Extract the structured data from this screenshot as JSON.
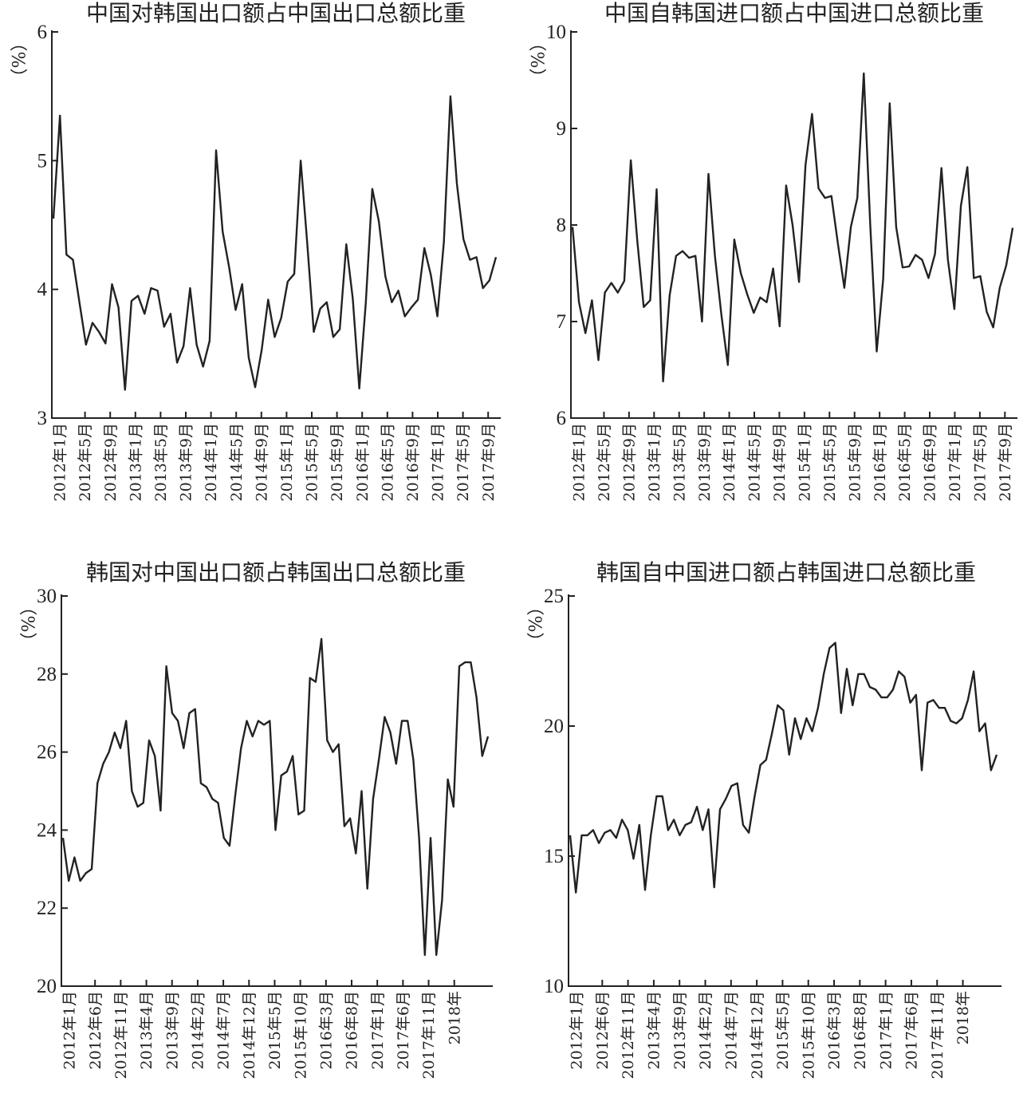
{
  "chart_data": [
    {
      "type": "line",
      "title": "中国对韩国出口额占中国出口总额比重",
      "ylabel": "（%）",
      "ylim": [
        3,
        6
      ],
      "yticks": [
        "3",
        "4",
        "5",
        "6"
      ],
      "x_start": "2012-01",
      "x_end": "2017-12",
      "xtick_labels": [
        "2012年1月",
        "2012年5月",
        "2012年9月",
        "2013年1月",
        "2013年5月",
        "2013年9月",
        "2014年1月",
        "2014年5月",
        "2014年9月",
        "2015年1月",
        "2015年5月",
        "2015年9月",
        "2016年1月",
        "2016年5月",
        "2016年9月",
        "2017年1月",
        "2017年5月",
        "2017年9月"
      ],
      "series": [
        {
          "values": [
            4.55,
            5.35,
            4.27,
            4.23,
            3.9,
            3.57,
            3.74,
            3.67,
            3.58,
            4.04,
            3.86,
            3.22,
            3.91,
            3.95,
            3.81,
            4.01,
            3.99,
            3.71,
            3.81,
            3.43,
            3.56,
            4.01,
            3.57,
            3.4,
            3.6,
            5.08,
            4.45,
            4.17,
            3.84,
            4.04,
            3.47,
            3.24,
            3.53,
            3.92,
            3.63,
            3.78,
            4.06,
            4.12,
            5.0,
            4.36,
            3.67,
            3.85,
            3.9,
            3.63,
            3.69,
            4.35,
            3.93,
            3.23,
            3.9,
            4.78,
            4.53,
            4.1,
            3.9,
            3.99,
            3.79,
            3.86,
            3.92,
            4.32,
            4.11,
            3.79,
            4.37,
            5.5,
            4.82,
            4.39,
            4.23,
            4.25,
            4.01,
            4.07,
            4.25
          ]
        }
      ]
    },
    {
      "type": "line",
      "title": "中国自韩国进口额占中国进口总额比重",
      "ylabel": "（%）",
      "ylim": [
        6,
        10
      ],
      "yticks": [
        "6",
        "7",
        "8",
        "9",
        "10"
      ],
      "x_start": "2012-01",
      "x_end": "2017-12",
      "xtick_labels": [
        "2012年1月",
        "2012年5月",
        "2012年9月",
        "2013年1月",
        "2013年5月",
        "2013年9月",
        "2014年1月",
        "2014年5月",
        "2014年9月",
        "2015年1月",
        "2015年5月",
        "2015年9月",
        "2016年1月",
        "2016年5月",
        "2016年9月",
        "2017年1月",
        "2017年5月",
        "2017年9月"
      ],
      "series": [
        {
          "values": [
            7.98,
            7.2,
            6.88,
            7.22,
            6.6,
            7.3,
            7.4,
            7.3,
            7.42,
            8.67,
            7.84,
            7.15,
            7.22,
            8.37,
            6.38,
            7.27,
            7.68,
            7.73,
            7.66,
            7.68,
            7.0,
            8.53,
            7.68,
            7.07,
            6.55,
            7.85,
            7.5,
            7.28,
            7.09,
            7.25,
            7.2,
            7.55,
            6.95,
            8.41,
            8.0,
            7.41,
            8.62,
            9.15,
            8.38,
            8.28,
            8.3,
            7.81,
            7.35,
            7.98,
            8.28,
            9.57,
            8.0,
            6.69,
            7.44,
            9.26,
            7.98,
            7.56,
            7.57,
            7.69,
            7.64,
            7.45,
            7.7,
            8.59,
            7.64,
            7.13,
            8.2,
            8.6,
            7.45,
            7.47,
            7.1,
            6.94,
            7.35,
            7.58,
            7.97
          ]
        }
      ]
    },
    {
      "type": "line",
      "title": "韩国对中国出口额占韩国出口总额比重",
      "ylabel": "（%）",
      "ylim": [
        20,
        30
      ],
      "yticks": [
        "20",
        "22",
        "24",
        "26",
        "28",
        "30"
      ],
      "x_start": "2012-01",
      "x_end": "2018-01",
      "xtick_labels": [
        "2012年1月",
        "2012年6月",
        "2012年11月",
        "2013年4月",
        "2013年9月",
        "2014年2月",
        "2014年7月",
        "2014年12月",
        "2015年5月",
        "2015年10月",
        "2016年3月",
        "2016年8月",
        "2017年1月",
        "2017年6月",
        "2017年11月",
        "2018年"
      ],
      "series": [
        {
          "values": [
            23.8,
            22.7,
            23.3,
            22.7,
            22.9,
            23.0,
            25.2,
            25.7,
            26.0,
            26.5,
            26.1,
            26.8,
            25.0,
            24.6,
            24.7,
            26.3,
            25.9,
            24.5,
            28.2,
            27.0,
            26.8,
            26.1,
            27.0,
            27.1,
            25.2,
            25.1,
            24.8,
            24.7,
            23.8,
            23.6,
            24.9,
            26.1,
            26.8,
            26.4,
            26.8,
            26.7,
            26.8,
            24.0,
            25.4,
            25.5,
            25.9,
            24.4,
            24.5,
            27.9,
            27.8,
            28.9,
            26.3,
            26.0,
            26.2,
            24.1,
            24.3,
            23.4,
            25.0,
            22.5,
            24.8,
            25.8,
            26.9,
            26.5,
            25.7,
            26.8,
            26.8,
            25.8,
            23.8,
            20.8,
            23.8,
            20.8,
            22.2,
            25.3,
            24.6,
            28.2,
            28.3,
            28.3,
            27.4,
            25.9,
            26.4
          ]
        }
      ]
    },
    {
      "type": "line",
      "title": "韩国自中国进口额占韩国进口总额比重",
      "ylabel": "（%）",
      "ylim": [
        10,
        25
      ],
      "yticks": [
        "10",
        "15",
        "20",
        "25"
      ],
      "x_start": "2012-01",
      "x_end": "2018-01",
      "xtick_labels": [
        "2012年1月",
        "2012年6月",
        "2012年11月",
        "2013年4月",
        "2013年9月",
        "2014年2月",
        "2014年7月",
        "2014年12月",
        "2015年5月",
        "2015年10月",
        "2016年3月",
        "2016年8月",
        "2017年1月",
        "2017年6月",
        "2017年11月",
        "2018年"
      ],
      "series": [
        {
          "values": [
            15.8,
            13.6,
            15.8,
            15.8,
            16.0,
            15.5,
            15.9,
            16.0,
            15.7,
            16.4,
            16.0,
            14.9,
            16.2,
            13.7,
            15.8,
            17.3,
            17.3,
            16.0,
            16.4,
            15.8,
            16.2,
            16.3,
            16.9,
            16.0,
            16.8,
            13.8,
            16.8,
            17.2,
            17.7,
            17.8,
            16.2,
            15.9,
            17.3,
            18.5,
            18.7,
            19.7,
            20.8,
            20.6,
            18.9,
            20.3,
            19.5,
            20.3,
            19.8,
            20.7,
            22.0,
            23.0,
            23.2,
            20.5,
            22.2,
            20.8,
            22.0,
            22.0,
            21.5,
            21.4,
            21.1,
            21.1,
            21.4,
            22.1,
            21.9,
            20.9,
            21.2,
            18.3,
            20.9,
            21.0,
            20.7,
            20.7,
            20.2,
            20.1,
            20.3,
            21.0,
            22.1,
            19.8,
            20.1,
            18.3,
            18.9
          ]
        }
      ]
    }
  ]
}
